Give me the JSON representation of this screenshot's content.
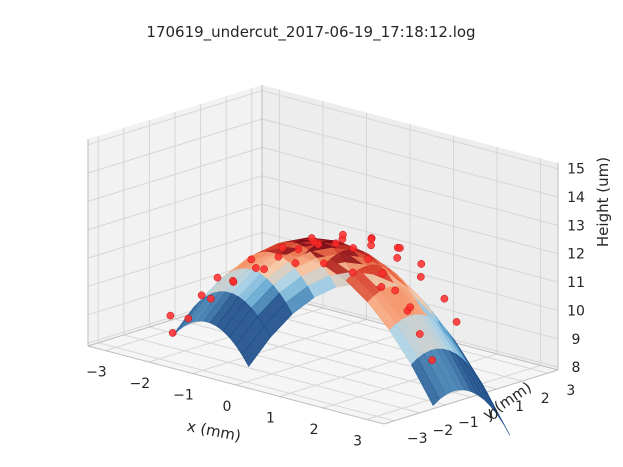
{
  "chart_data": {
    "type": "scatter",
    "subtype": "3d-surface-with-scatter",
    "title": "170619_undercut_2017-06-19_17:18:12.log",
    "xlabel": "x (mm)",
    "ylabel": "y (mm)",
    "zlabel": "Height (um)",
    "xlim": [
      -3.4,
      3.4
    ],
    "ylim": [
      -3.4,
      3.4
    ],
    "zlim": [
      7.9,
      15.2
    ],
    "x_ticks": [
      -3,
      -2,
      -1,
      0,
      1,
      2,
      3
    ],
    "y_ticks": [
      -3,
      -2,
      -1,
      0,
      1,
      2,
      3
    ],
    "z_ticks": [
      8,
      9,
      10,
      11,
      12,
      13,
      14,
      15
    ],
    "x_tick_labels": [
      "−3",
      "−2",
      "−1",
      "0",
      "1",
      "2",
      "3"
    ],
    "y_tick_labels": [
      "−3",
      "−2",
      "−1",
      "0",
      "1",
      "2",
      "3"
    ],
    "z_tick_labels": [
      "8",
      "9",
      "10",
      "11",
      "12",
      "13",
      "14",
      "15"
    ],
    "grid": true,
    "surface": {
      "model": "z = 12.0 - 0.45*(x^2 + y^2)",
      "colormap": [
        "#1e4f8a",
        "#5da4cf",
        "#a8d2e8",
        "#f7c9a5",
        "#f58a5e",
        "#d63a2a",
        "#7a0d1a"
      ]
    },
    "series": [
      {
        "marker_color": "#ff2a2a",
        "points": [
          {
            "x": -3.1,
            "y": -0.6,
            "z": 7.7
          },
          {
            "x": -2.8,
            "y": -0.5,
            "z": 8.3
          },
          {
            "x": -2.4,
            "y": -0.3,
            "z": 9.1
          },
          {
            "x": -2.0,
            "y": -0.1,
            "z": 9.8
          },
          {
            "x": -1.6,
            "y": 0.1,
            "z": 10.4
          },
          {
            "x": -1.2,
            "y": 0.3,
            "z": 10.9
          },
          {
            "x": -0.8,
            "y": 0.4,
            "z": 11.3
          },
          {
            "x": -0.4,
            "y": 0.5,
            "z": 11.6
          },
          {
            "x": 0.0,
            "y": 0.5,
            "z": 11.8
          },
          {
            "x": 0.4,
            "y": 0.5,
            "z": 11.8
          },
          {
            "x": 0.8,
            "y": 0.4,
            "z": 11.6
          },
          {
            "x": 1.2,
            "y": 0.3,
            "z": 11.3
          },
          {
            "x": 1.6,
            "y": 0.1,
            "z": 10.9
          },
          {
            "x": 2.0,
            "y": -0.1,
            "z": 10.4
          },
          {
            "x": 2.4,
            "y": -0.3,
            "z": 9.8
          },
          {
            "x": 2.8,
            "y": -0.5,
            "z": 9.1
          },
          {
            "x": -2.8,
            "y": -1.2,
            "z": 8.6
          },
          {
            "x": -2.2,
            "y": -1.0,
            "z": 9.5
          },
          {
            "x": -1.6,
            "y": -0.8,
            "z": 10.2
          },
          {
            "x": -1.0,
            "y": -0.6,
            "z": 10.8
          },
          {
            "x": -0.4,
            "y": -0.4,
            "z": 11.2
          },
          {
            "x": 0.2,
            "y": -0.3,
            "z": 11.4
          },
          {
            "x": 0.8,
            "y": -0.2,
            "z": 11.3
          },
          {
            "x": 1.4,
            "y": -0.1,
            "z": 11.0
          },
          {
            "x": 2.0,
            "y": 0.0,
            "z": 10.5
          },
          {
            "x": -2.6,
            "y": 0.3,
            "z": 9.6
          },
          {
            "x": -2.0,
            "y": 0.6,
            "z": 10.4
          },
          {
            "x": -1.4,
            "y": 0.8,
            "z": 11.0
          },
          {
            "x": -0.8,
            "y": 1.0,
            "z": 11.4
          },
          {
            "x": -0.2,
            "y": 1.1,
            "z": 11.7
          },
          {
            "x": 0.4,
            "y": 1.2,
            "z": 11.7
          },
          {
            "x": 1.0,
            "y": 1.2,
            "z": 11.5
          },
          {
            "x": 1.6,
            "y": 1.1,
            "z": 11.1
          },
          {
            "x": 2.2,
            "y": 1.0,
            "z": 10.6
          },
          {
            "x": 2.6,
            "y": 0.8,
            "z": 10.0
          },
          {
            "x": -1.2,
            "y": 1.6,
            "z": 11.2
          },
          {
            "x": -0.6,
            "y": 1.8,
            "z": 11.5
          },
          {
            "x": 0.0,
            "y": 1.9,
            "z": 11.6
          },
          {
            "x": 0.6,
            "y": 1.9,
            "z": 11.5
          },
          {
            "x": 1.2,
            "y": 1.8,
            "z": 11.2
          },
          {
            "x": -0.3,
            "y": 2.4,
            "z": 11.3
          },
          {
            "x": 0.3,
            "y": 2.5,
            "z": 11.2
          }
        ]
      }
    ]
  }
}
